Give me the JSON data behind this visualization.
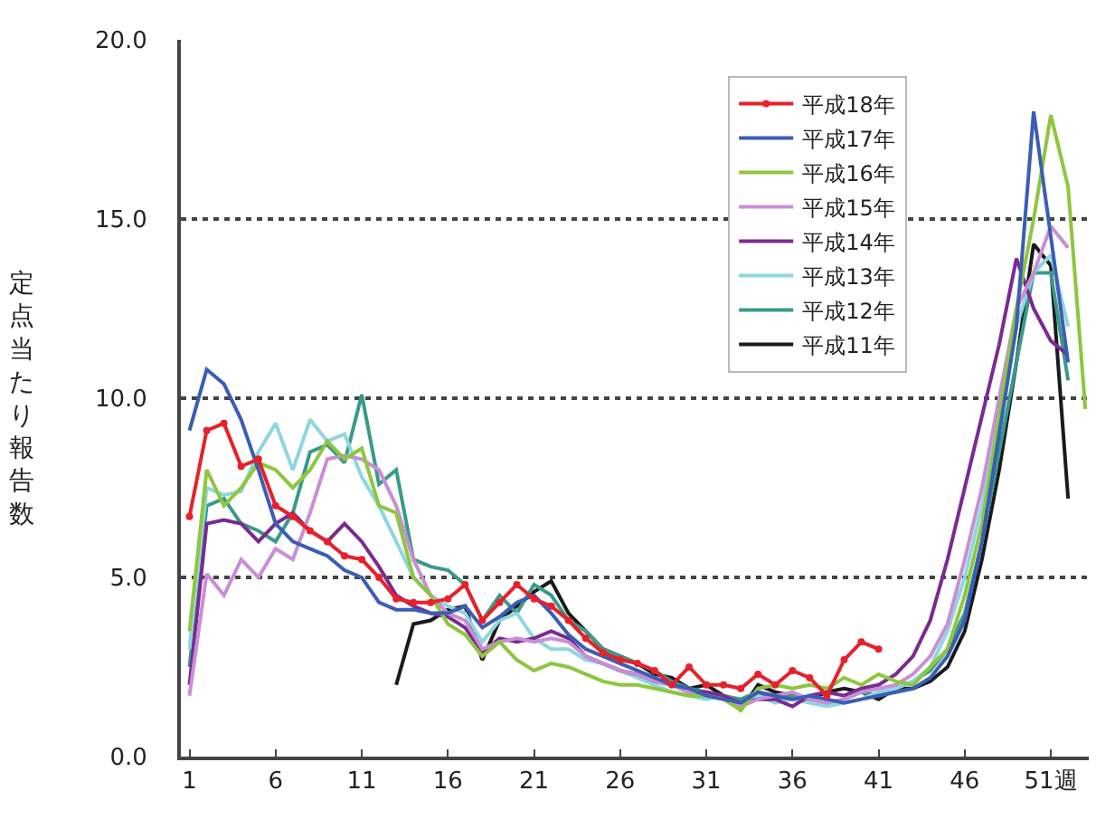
{
  "chart_data": {
    "type": "line",
    "ylabel": "定点当たり報告数",
    "xlim": [
      0.5,
      53.2
    ],
    "xticks": [
      1,
      6,
      11,
      16,
      21,
      26,
      31,
      36,
      41,
      46,
      {
        "value": 51,
        "label": "51週"
      }
    ],
    "ylim": [
      0,
      20
    ],
    "yticks": [
      {
        "value": 0,
        "label": "0.0"
      },
      {
        "value": 5,
        "label": "5.0"
      },
      {
        "value": 10,
        "label": "10.0"
      },
      {
        "value": 15,
        "label": "15.0"
      },
      {
        "value": 20,
        "label": "20.0"
      }
    ],
    "grid": "y",
    "legend": "top right",
    "series": [
      {
        "name": "平成18年",
        "color": "#e8202a",
        "marker": "circle",
        "x": [
          1,
          2,
          3,
          4,
          5,
          6,
          7,
          8,
          9,
          10,
          11,
          12,
          13,
          14,
          15,
          16,
          17,
          18,
          19,
          20,
          21,
          22,
          23,
          24,
          25,
          26,
          27,
          28,
          29,
          30,
          31,
          32,
          33,
          34,
          35,
          36,
          37,
          38,
          39,
          40,
          41
        ],
        "values": [
          6.7,
          9.1,
          9.3,
          8.1,
          8.3,
          7.0,
          6.7,
          6.3,
          6.0,
          5.6,
          5.5,
          5.0,
          4.4,
          4.3,
          4.3,
          4.4,
          4.8,
          3.8,
          4.3,
          4.8,
          4.4,
          4.2,
          3.8,
          3.3,
          2.9,
          2.7,
          2.6,
          2.4,
          2.0,
          2.5,
          2.0,
          2.0,
          1.9,
          2.3,
          2.0,
          2.4,
          2.2,
          1.7,
          2.7,
          3.2,
          3.0
        ]
      },
      {
        "name": "平成17年",
        "color": "#3b5db5",
        "x": [
          1,
          2,
          3,
          4,
          5,
          6,
          7,
          8,
          9,
          10,
          11,
          12,
          13,
          14,
          15,
          16,
          17,
          18,
          19,
          20,
          21,
          22,
          23,
          24,
          25,
          26,
          27,
          28,
          29,
          30,
          31,
          32,
          33,
          34,
          35,
          36,
          37,
          38,
          39,
          40,
          41,
          42,
          43,
          44,
          45,
          46,
          47,
          48,
          49,
          50,
          51,
          52
        ],
        "values": [
          9.1,
          10.8,
          10.4,
          9.4,
          8.0,
          6.5,
          6.0,
          5.8,
          5.6,
          5.2,
          5.0,
          4.3,
          4.1,
          4.1,
          4.0,
          4.0,
          4.2,
          3.6,
          3.9,
          4.3,
          4.5,
          4.0,
          3.4,
          3.0,
          2.8,
          2.6,
          2.4,
          2.2,
          2.0,
          1.9,
          1.7,
          1.6,
          1.5,
          1.8,
          1.7,
          1.6,
          1.7,
          1.6,
          1.5,
          1.6,
          1.7,
          1.8,
          1.9,
          2.2,
          2.8,
          3.8,
          6.0,
          9.0,
          12.0,
          18.0,
          14.5,
          11.0
        ]
      },
      {
        "name": "平成16年",
        "color": "#8ec63f",
        "x": [
          1,
          2,
          3,
          4,
          5,
          6,
          7,
          8,
          9,
          10,
          11,
          12,
          13,
          14,
          15,
          16,
          17,
          18,
          19,
          20,
          21,
          22,
          23,
          24,
          25,
          26,
          27,
          28,
          29,
          30,
          31,
          32,
          33,
          34,
          35,
          36,
          37,
          38,
          39,
          40,
          41,
          42,
          43,
          44,
          45,
          46,
          47,
          48,
          49,
          50,
          51,
          52,
          53
        ],
        "values": [
          3.5,
          8.0,
          7.0,
          7.5,
          8.2,
          8.0,
          7.5,
          8.0,
          8.8,
          8.3,
          8.6,
          7.0,
          6.8,
          5.0,
          4.5,
          3.7,
          3.4,
          2.8,
          3.2,
          2.7,
          2.4,
          2.6,
          2.5,
          2.3,
          2.1,
          2.0,
          2.0,
          1.9,
          1.8,
          1.7,
          1.7,
          1.6,
          1.3,
          1.9,
          2.0,
          1.9,
          2.0,
          1.9,
          2.2,
          2.0,
          2.3,
          2.1,
          2.0,
          2.5,
          3.0,
          4.5,
          6.5,
          9.5,
          12.5,
          15.0,
          17.9,
          15.9,
          9.7
        ]
      },
      {
        "name": "平成15年",
        "color": "#c98ed6",
        "x": [
          1,
          2,
          3,
          4,
          5,
          6,
          7,
          8,
          9,
          10,
          11,
          12,
          13,
          14,
          15,
          16,
          17,
          18,
          19,
          20,
          21,
          22,
          23,
          24,
          25,
          26,
          27,
          28,
          29,
          30,
          31,
          32,
          33,
          34,
          35,
          36,
          37,
          38,
          39,
          40,
          41,
          42,
          43,
          44,
          45,
          46,
          47,
          48,
          49,
          50,
          51,
          52
        ],
        "values": [
          1.7,
          5.1,
          4.5,
          5.5,
          5.0,
          5.8,
          5.5,
          6.8,
          8.3,
          8.4,
          8.3,
          8.0,
          7.0,
          5.5,
          4.5,
          4.0,
          3.8,
          3.0,
          3.2,
          3.3,
          3.2,
          3.3,
          3.2,
          2.8,
          2.6,
          2.4,
          2.3,
          2.1,
          2.0,
          1.8,
          1.7,
          1.6,
          1.4,
          1.6,
          1.7,
          1.8,
          1.6,
          1.5,
          1.6,
          1.8,
          1.9,
          2.0,
          2.3,
          2.8,
          3.7,
          5.5,
          7.5,
          10.0,
          12.5,
          13.5,
          14.8,
          14.2
        ]
      },
      {
        "name": "平成14年",
        "color": "#7a2b8f",
        "x": [
          1,
          2,
          3,
          4,
          5,
          6,
          7,
          8,
          9,
          10,
          11,
          12,
          13,
          14,
          15,
          16,
          17,
          18,
          19,
          20,
          21,
          22,
          23,
          24,
          25,
          26,
          27,
          28,
          29,
          30,
          31,
          32,
          33,
          34,
          35,
          36,
          37,
          38,
          39,
          40,
          41,
          42,
          43,
          44,
          45,
          46,
          47,
          48,
          49,
          50,
          51,
          52
        ],
        "values": [
          2.0,
          6.5,
          6.6,
          6.5,
          6.0,
          6.5,
          6.8,
          6.3,
          6.0,
          6.5,
          6.0,
          5.3,
          4.5,
          4.2,
          4.0,
          3.9,
          3.6,
          2.9,
          3.3,
          3.2,
          3.3,
          3.5,
          3.3,
          2.8,
          2.6,
          2.4,
          2.3,
          2.1,
          2.0,
          1.8,
          1.8,
          1.7,
          1.5,
          1.6,
          1.6,
          1.4,
          1.7,
          1.8,
          1.7,
          1.9,
          2.0,
          2.3,
          2.8,
          3.8,
          5.5,
          7.5,
          9.5,
          11.5,
          13.9,
          12.5,
          11.6,
          11.2
        ]
      },
      {
        "name": "平成13年",
        "color": "#8fd6e0",
        "x": [
          1,
          2,
          3,
          4,
          5,
          6,
          7,
          8,
          9,
          10,
          11,
          12,
          13,
          14,
          15,
          16,
          17,
          18,
          19,
          20,
          21,
          22,
          23,
          24,
          25,
          26,
          27,
          28,
          29,
          30,
          31,
          32,
          33,
          34,
          35,
          36,
          37,
          38,
          39,
          40,
          41,
          42,
          43,
          44,
          45,
          46,
          47,
          48,
          49,
          50,
          51,
          52
        ],
        "values": [
          3.0,
          7.5,
          7.3,
          7.4,
          8.5,
          9.3,
          8.0,
          9.4,
          8.8,
          9.0,
          7.8,
          7.0,
          6.0,
          5.0,
          4.5,
          4.2,
          4.0,
          3.2,
          3.8,
          4.0,
          3.3,
          3.0,
          3.0,
          2.7,
          2.6,
          2.4,
          2.2,
          2.0,
          1.8,
          1.7,
          1.6,
          1.7,
          1.5,
          1.7,
          1.5,
          1.6,
          1.5,
          1.4,
          1.5,
          1.6,
          1.8,
          1.9,
          2.1,
          2.5,
          3.5,
          5.0,
          7.0,
          9.5,
          12.0,
          13.5,
          14.0,
          12.0
        ]
      },
      {
        "name": "平成12年",
        "color": "#3a9a8a",
        "x": [
          1,
          2,
          3,
          4,
          5,
          6,
          7,
          8,
          9,
          10,
          11,
          12,
          13,
          14,
          15,
          16,
          17,
          18,
          19,
          20,
          21,
          22,
          23,
          24,
          25,
          26,
          27,
          28,
          29,
          30,
          31,
          32,
          33,
          34,
          35,
          36,
          37,
          38,
          39,
          40,
          41,
          42,
          43,
          44,
          45,
          46,
          47,
          48,
          49,
          50,
          51,
          52
        ],
        "values": [
          2.5,
          7.0,
          7.2,
          6.5,
          6.3,
          6.0,
          6.8,
          8.5,
          8.7,
          8.2,
          10.1,
          7.6,
          8.0,
          5.5,
          5.3,
          5.2,
          4.8,
          3.8,
          4.5,
          4.0,
          4.8,
          4.5,
          3.8,
          3.5,
          3.0,
          2.8,
          2.6,
          2.4,
          2.1,
          1.9,
          1.8,
          1.7,
          1.6,
          1.8,
          1.6,
          1.7,
          1.6,
          1.5,
          1.6,
          1.8,
          1.7,
          1.9,
          2.1,
          2.4,
          3.0,
          4.0,
          6.0,
          8.5,
          11.0,
          13.5,
          13.5,
          10.5
        ]
      },
      {
        "name": "平成11年",
        "color": "#1a1a1a",
        "x": [
          13,
          14,
          15,
          16,
          17,
          18,
          19,
          20,
          21,
          22,
          23,
          24,
          25,
          26,
          27,
          28,
          29,
          30,
          31,
          32,
          33,
          34,
          35,
          36,
          37,
          38,
          39,
          40,
          41,
          42,
          43,
          44,
          45,
          46,
          47,
          48,
          49,
          50,
          51,
          52
        ],
        "values": [
          2.0,
          3.7,
          3.8,
          4.1,
          4.2,
          2.7,
          3.8,
          4.2,
          4.6,
          4.9,
          4.0,
          3.5,
          3.0,
          2.8,
          2.6,
          2.3,
          2.2,
          1.9,
          2.0,
          1.7,
          1.3,
          2.0,
          1.8,
          1.7,
          1.6,
          1.8,
          1.9,
          1.8,
          1.6,
          1.9,
          1.9,
          2.1,
          2.5,
          3.5,
          5.5,
          8.0,
          11.0,
          14.3,
          13.7,
          7.2
        ]
      }
    ]
  }
}
